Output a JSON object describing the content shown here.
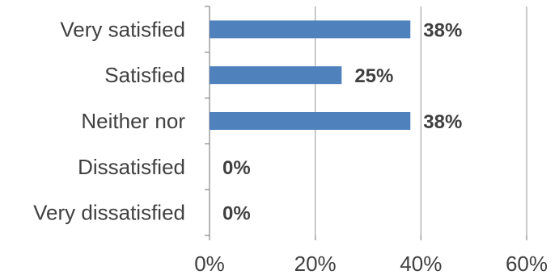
{
  "chart_data": {
    "type": "bar",
    "orientation": "horizontal",
    "categories": [
      "Very satisfied",
      "Satisfied",
      "Neither nor",
      "Dissatisfied",
      "Very dissatisfied"
    ],
    "values": [
      38,
      25,
      38,
      0,
      0
    ],
    "data_labels": [
      "38%",
      "25%",
      "38%",
      "0%",
      "0%"
    ],
    "x_ticks": [
      "0%",
      "20%",
      "40%",
      "60%"
    ],
    "xlim": [
      0,
      60
    ],
    "bar_color": "#4f81bd",
    "grid": true
  }
}
